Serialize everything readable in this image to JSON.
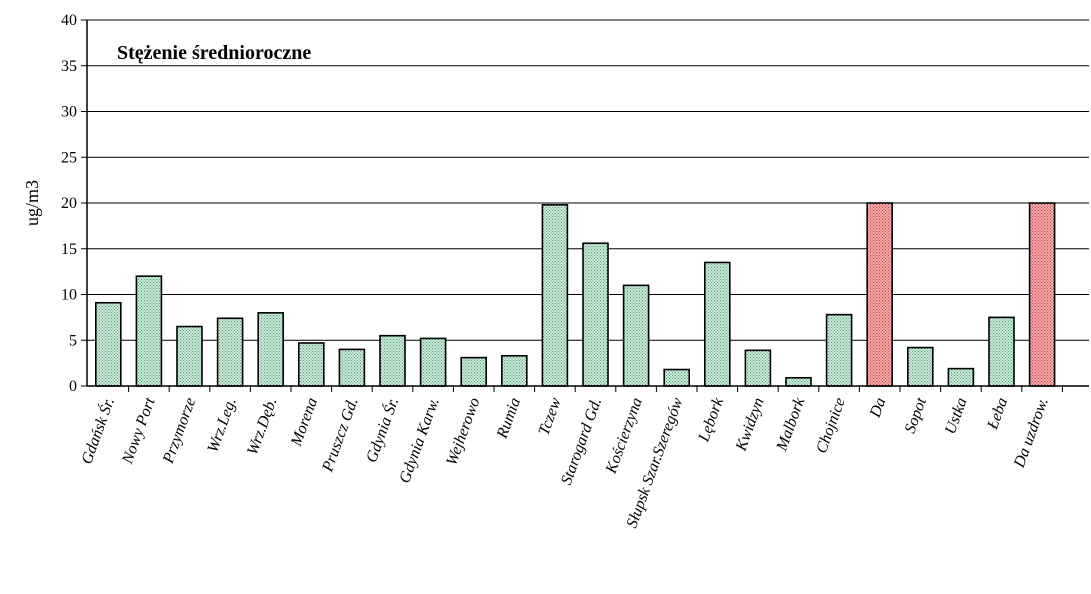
{
  "chart_data": {
    "type": "bar",
    "title": "Stężenie średnioroczne",
    "ylabel": "ug/m3",
    "xlabel": "",
    "ylim": [
      0,
      40
    ],
    "yticks": [
      "0",
      "5",
      "10",
      "15",
      "20",
      "25",
      "30",
      "35",
      "40"
    ],
    "grid": true,
    "categories": [
      "Gdańsk Śr.",
      "Nowy Port",
      "Przymorze",
      "Wrz.Leg.",
      "Wrz.Dęb.",
      "Morena",
      "Pruszcz Gd.",
      "Gdynia Śr.",
      "Gdynia Karw.",
      "Wejherowo",
      "Rumia",
      "Tczew",
      "Starogard Gd.",
      "Kościerzyna",
      "Słupsk Szar.Szeregów",
      "Lębork",
      "Kwidzyn",
      "Malbork",
      "Chojnice",
      "Da",
      "Sopot",
      "Ustka",
      "Łeba",
      "Da uzdrow."
    ],
    "values": [
      9.1,
      12.0,
      6.5,
      7.4,
      8.0,
      4.7,
      4.0,
      5.5,
      5.2,
      3.1,
      3.3,
      19.8,
      15.6,
      11.0,
      1.8,
      13.5,
      3.9,
      0.9,
      7.8,
      20.0,
      4.2,
      1.9,
      7.5,
      20.0
    ],
    "colors": [
      "green",
      "green",
      "green",
      "green",
      "green",
      "green",
      "green",
      "green",
      "green",
      "green",
      "green",
      "green",
      "green",
      "green",
      "green",
      "green",
      "green",
      "green",
      "green",
      "red",
      "green",
      "green",
      "green",
      "red"
    ],
    "palette": {
      "green": "#b6e0c9",
      "red": "#f08c8c",
      "border": "#000000"
    }
  }
}
